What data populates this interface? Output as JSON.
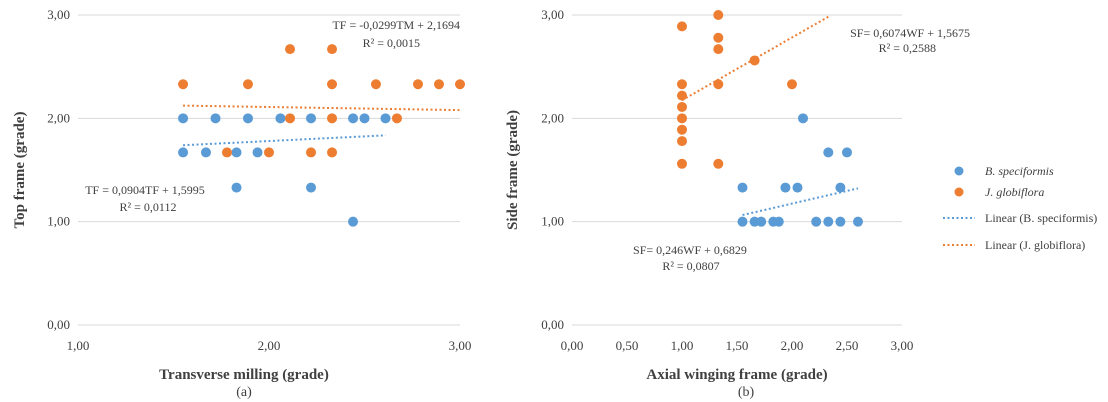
{
  "colors": {
    "blue": "#5b9bd5",
    "orange": "#ed7d31",
    "text": "#404040",
    "grid": "#d9d9d9"
  },
  "legend": {
    "position": "right",
    "items": [
      {
        "label": "B. speciformis",
        "kind": "marker",
        "color": "#5b9bd5",
        "italic": true
      },
      {
        "label": "J. globiflora",
        "kind": "marker",
        "color": "#ed7d31",
        "italic": true
      },
      {
        "label": "Linear (B. speciformis)",
        "kind": "line",
        "color": "#5b9bd5",
        "italic": false
      },
      {
        "label": "Linear (J. globiflora)",
        "kind": "line",
        "color": "#ed7d31",
        "italic": false
      }
    ]
  },
  "chart_data": [
    {
      "type": "scatter",
      "panel_label": "(a)",
      "xlabel": "Transverse milling (grade)",
      "ylabel": "Top frame (grade)",
      "xlim": [
        1,
        3
      ],
      "ylim": [
        0,
        3
      ],
      "xticks": [
        1,
        2,
        3
      ],
      "yticks": [
        0,
        1,
        2,
        3
      ],
      "xtick_labels": [
        "1,00",
        "2,00",
        "3,00"
      ],
      "ytick_labels": [
        "0,00",
        "1,00",
        "2,00",
        "3,00"
      ],
      "grid": "horizontal",
      "series": [
        {
          "name": "B. speciformis",
          "color": "#5b9bd5",
          "points": [
            [
              1.55,
              2.0
            ],
            [
              1.72,
              2.0
            ],
            [
              1.89,
              2.0
            ],
            [
              2.06,
              2.0
            ],
            [
              2.22,
              2.0
            ],
            [
              2.44,
              2.0
            ],
            [
              2.5,
              2.0
            ],
            [
              2.61,
              2.0
            ],
            [
              1.55,
              1.67
            ],
            [
              1.67,
              1.67
            ],
            [
              1.83,
              1.67
            ],
            [
              1.94,
              1.67
            ],
            [
              1.83,
              1.33
            ],
            [
              2.22,
              1.33
            ],
            [
              2.44,
              1.0
            ]
          ],
          "trend": {
            "slope": 0.0904,
            "intercept": 1.5995,
            "x_range": [
              1.55,
              2.61
            ]
          }
        },
        {
          "name": "J. globiflora",
          "color": "#ed7d31",
          "points": [
            [
              1.55,
              2.33
            ],
            [
              1.89,
              2.33
            ],
            [
              2.33,
              2.33
            ],
            [
              2.56,
              2.33
            ],
            [
              2.78,
              2.33
            ],
            [
              2.89,
              2.33
            ],
            [
              3.0,
              2.33
            ],
            [
              2.11,
              2.67
            ],
            [
              2.33,
              2.67
            ],
            [
              2.11,
              2.0
            ],
            [
              2.33,
              2.0
            ],
            [
              2.67,
              2.0
            ],
            [
              1.78,
              1.67
            ],
            [
              2.0,
              1.67
            ],
            [
              2.22,
              1.67
            ],
            [
              2.33,
              1.67
            ]
          ],
          "trend": {
            "slope": -0.0299,
            "intercept": 2.1694,
            "x_range": [
              1.55,
              3.0
            ]
          }
        }
      ],
      "annotations": [
        {
          "lines": [
            "TF = -0,0299TM + 2,1694",
            "R² = 0,0015"
          ]
        },
        {
          "lines": [
            "TF = 0,0904TF + 1,5995",
            "R² = 0,0112"
          ]
        }
      ]
    },
    {
      "type": "scatter",
      "panel_label": "(b)",
      "xlabel": "Axial winging frame (grade)",
      "ylabel": "Side  frame (grade)",
      "xlim": [
        0,
        3
      ],
      "ylim": [
        0,
        3
      ],
      "xticks": [
        0,
        0.5,
        1,
        1.5,
        2,
        2.5,
        3
      ],
      "yticks": [
        0,
        1,
        2,
        3
      ],
      "xtick_labels": [
        "0,00",
        "0,50",
        "1,00",
        "1,50",
        "2,00",
        "2,50",
        "3,00"
      ],
      "ytick_labels": [
        "0,00",
        "1,00",
        "2,00",
        "3,00"
      ],
      "grid": "horizontal",
      "series": [
        {
          "name": "B. speciformis",
          "color": "#5b9bd5",
          "points": [
            [
              2.1,
              2.0
            ],
            [
              2.33,
              1.67
            ],
            [
              2.5,
              1.67
            ],
            [
              1.55,
              1.33
            ],
            [
              1.94,
              1.33
            ],
            [
              2.05,
              1.33
            ],
            [
              2.44,
              1.33
            ],
            [
              1.55,
              1.0
            ],
            [
              1.66,
              1.0
            ],
            [
              1.72,
              1.0
            ],
            [
              1.83,
              1.0
            ],
            [
              1.88,
              1.0
            ],
            [
              2.22,
              1.0
            ],
            [
              2.33,
              1.0
            ],
            [
              2.44,
              1.0
            ],
            [
              2.6,
              1.0
            ]
          ],
          "trend": {
            "slope": 0.246,
            "intercept": 0.6829,
            "x_range": [
              1.55,
              2.6
            ]
          }
        },
        {
          "name": "J. globiflora",
          "color": "#ed7d31",
          "points": [
            [
              1.0,
              2.89
            ],
            [
              1.0,
              2.33
            ],
            [
              1.0,
              2.22
            ],
            [
              1.0,
              2.11
            ],
            [
              1.0,
              2.0
            ],
            [
              1.0,
              1.89
            ],
            [
              1.0,
              1.78
            ],
            [
              1.0,
              1.56
            ],
            [
              1.33,
              3.0
            ],
            [
              1.33,
              2.78
            ],
            [
              1.33,
              2.67
            ],
            [
              1.33,
              2.33
            ],
            [
              1.33,
              1.56
            ],
            [
              1.66,
              2.56
            ],
            [
              2.0,
              2.33
            ]
          ],
          "trend": {
            "slope": 0.6074,
            "intercept": 1.5675,
            "x_range": [
              1.0,
              2.35
            ]
          }
        }
      ],
      "annotations": [
        {
          "lines": [
            "SF= 0,6074WF + 1,5675",
            "R² = 0,2588"
          ]
        },
        {
          "lines": [
            "SF= 0,246WF + 0,6829",
            "R² = 0,0807"
          ]
        }
      ]
    }
  ]
}
